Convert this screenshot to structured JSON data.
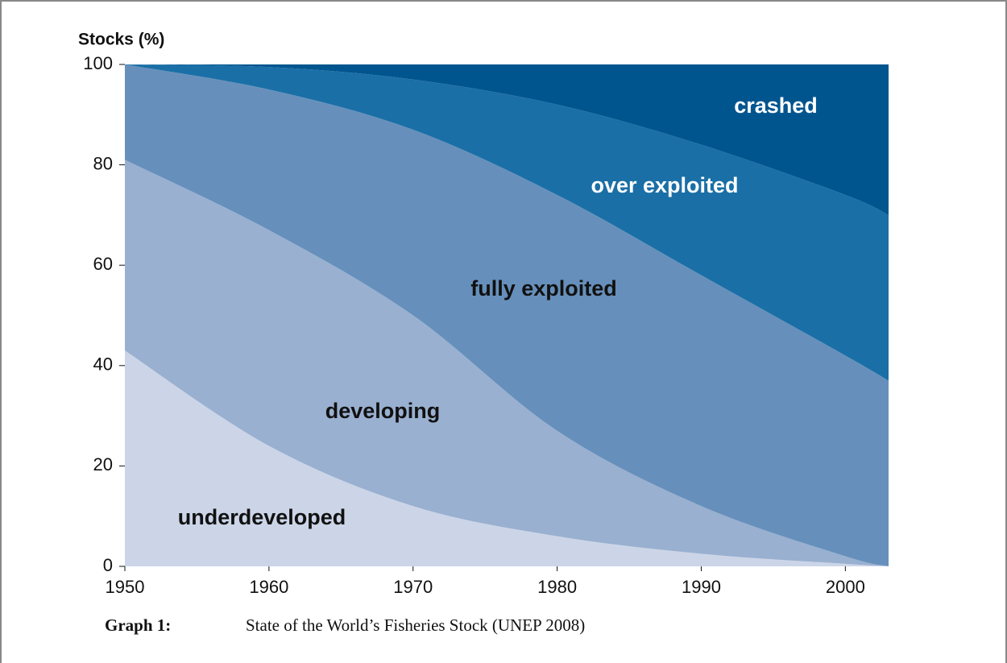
{
  "chart_data": {
    "type": "stacked_area",
    "ylabel": "Stocks (%)",
    "x": [
      1950,
      1960,
      1970,
      1980,
      1990,
      2000,
      2003
    ],
    "series": [
      {
        "name": "underdeveloped",
        "color": "#ccd5e8",
        "values": [
          43,
          24,
          12,
          6,
          2.5,
          0.5,
          0
        ]
      },
      {
        "name": "developing",
        "color": "#99b0d0",
        "values": [
          38,
          43,
          38,
          21,
          9.5,
          1.5,
          0
        ]
      },
      {
        "name": "fully exploited",
        "color": "#6690bb",
        "values": [
          19,
          28,
          37,
          47,
          46,
          40,
          37
        ]
      },
      {
        "name": "over exploited",
        "color": "#1a6fa6",
        "values": [
          0,
          4.5,
          10,
          18,
          26,
          32,
          33
        ]
      },
      {
        "name": "crashed",
        "color": "#00558f",
        "values": [
          0,
          0.5,
          3,
          8,
          16,
          26,
          30
        ]
      }
    ],
    "xlim": [
      1950,
      2003
    ],
    "xticks": [
      1950,
      1960,
      1970,
      1980,
      1990,
      2000
    ],
    "ylim": [
      0,
      100
    ],
    "yticks": [
      0,
      20,
      40,
      60,
      80,
      100
    ]
  },
  "caption": {
    "label": "Graph 1:",
    "text": "State of the World’s Fisheries Stock (UNEP 2008)"
  }
}
